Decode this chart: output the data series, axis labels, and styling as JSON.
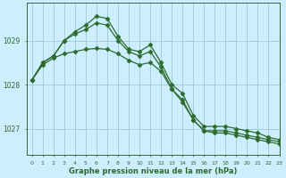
{
  "title": "Graphe pression niveau de la mer (hPa)",
  "bg_color": "#cceeff",
  "grid_color": "#99cccc",
  "line_color": "#2d6b2d",
  "xlim": [
    -0.5,
    23
  ],
  "ylim": [
    1026.4,
    1029.85
  ],
  "yticks": [
    1027,
    1028,
    1029
  ],
  "xticks": [
    0,
    1,
    2,
    3,
    4,
    5,
    6,
    7,
    8,
    9,
    10,
    11,
    12,
    13,
    14,
    15,
    16,
    17,
    18,
    19,
    20,
    21,
    22,
    23
  ],
  "series1": [
    1028.1,
    1028.5,
    1028.65,
    1029.0,
    1029.2,
    1029.35,
    1029.55,
    1029.5,
    1029.1,
    1028.8,
    1028.75,
    1028.9,
    1028.5,
    1028.0,
    1027.8,
    1027.3,
    1027.05,
    1027.05,
    1027.05,
    1027.0,
    1026.95,
    1026.9,
    1026.8,
    1026.75
  ],
  "series2": [
    1028.1,
    1028.5,
    1028.65,
    1029.0,
    1029.15,
    1029.25,
    1029.4,
    1029.35,
    1029.0,
    1028.75,
    1028.65,
    1028.75,
    1028.4,
    1027.9,
    1027.65,
    1027.2,
    1026.95,
    1026.95,
    1026.95,
    1026.9,
    1026.85,
    1026.8,
    1026.75,
    1026.7
  ],
  "series3": [
    1028.1,
    1028.45,
    1028.6,
    1028.7,
    1028.75,
    1028.8,
    1028.82,
    1028.8,
    1028.7,
    1028.55,
    1028.45,
    1028.5,
    1028.3,
    1027.9,
    1027.6,
    1027.2,
    1026.95,
    1026.9,
    1026.9,
    1026.85,
    1026.8,
    1026.75,
    1026.7,
    1026.65
  ],
  "marker": "D",
  "markersize": 2.5,
  "linewidth": 0.9
}
